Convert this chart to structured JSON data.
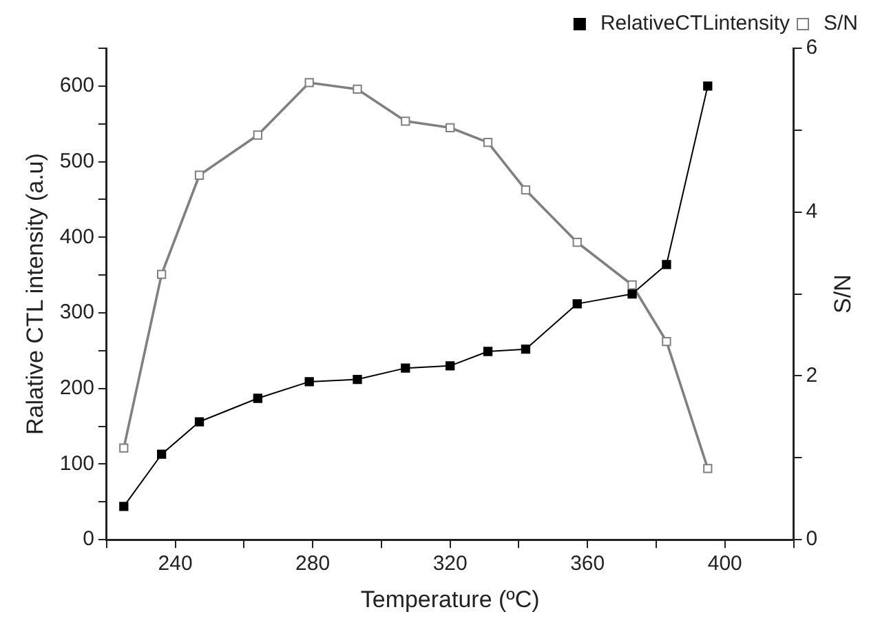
{
  "chart_data": {
    "type": "line",
    "xlabel": "Temperature (ºC)",
    "ylabel": "Ralative CTL intensity (a.u)",
    "y2label": "S/N",
    "xlim": [
      220,
      420
    ],
    "xticks": [
      {
        "value": 220,
        "label": null
      },
      240,
      {
        "value": 260,
        "label": null
      },
      280,
      {
        "value": 300,
        "label": null
      },
      320,
      {
        "value": 340,
        "label": null
      },
      360,
      {
        "value": 380,
        "label": null
      },
      400,
      {
        "value": 420,
        "label": null
      }
    ],
    "ylim": [
      0,
      650
    ],
    "yticks": [
      0,
      {
        "value": 50,
        "label": null
      },
      100,
      {
        "value": 150,
        "label": null
      },
      200,
      {
        "value": 250,
        "label": null
      },
      300,
      {
        "value": 350,
        "label": null
      },
      400,
      {
        "value": 450,
        "label": null
      },
      500,
      {
        "value": 550,
        "label": null
      },
      600,
      {
        "value": 650,
        "label": null
      }
    ],
    "y2lim": [
      0,
      6
    ],
    "y2ticks": [
      0,
      {
        "value": 1,
        "label": null
      },
      2,
      {
        "value": 3,
        "label": null
      },
      4,
      {
        "value": 5,
        "label": null
      },
      6
    ],
    "marker": "square",
    "legend": "top right",
    "grid": false,
    "series": [
      {
        "name": "RelativeCTLintensity",
        "color": "#000000",
        "x": [
          225,
          236,
          247,
          264,
          279,
          293,
          307,
          320,
          331,
          342,
          357,
          373,
          383,
          395
        ],
        "values": [
          44,
          113,
          156,
          187,
          209,
          212,
          227,
          230,
          249,
          252,
          312,
          325,
          364,
          600
        ]
      },
      {
        "name": "S/N",
        "color": "#808080",
        "axis": "y2",
        "x": [
          225,
          236,
          247,
          264,
          279,
          293,
          307,
          320,
          331,
          342,
          357,
          373,
          383,
          395
        ],
        "values": [
          1.12,
          3.24,
          4.45,
          4.94,
          5.58,
          5.5,
          5.11,
          5.03,
          4.85,
          4.27,
          3.63,
          3.11,
          2.42,
          0.87
        ]
      }
    ]
  }
}
